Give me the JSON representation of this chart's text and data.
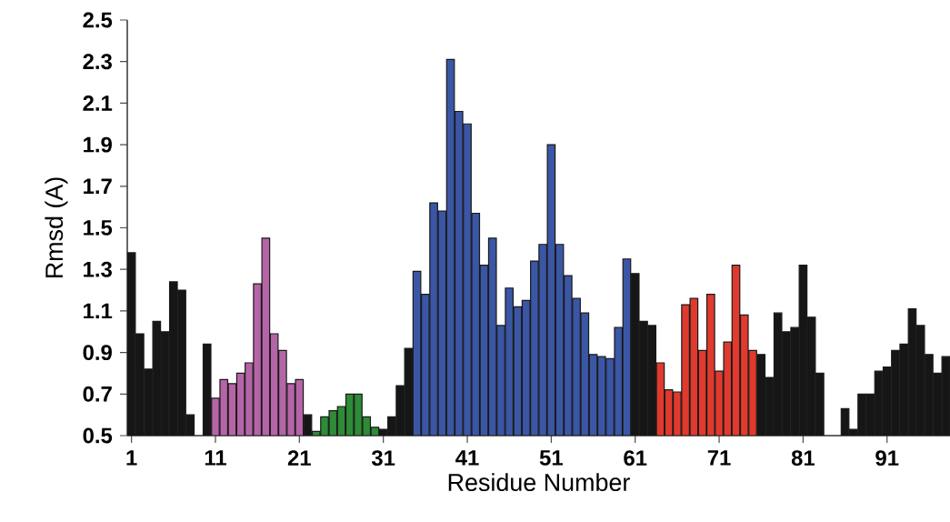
{
  "chart_data": {
    "type": "bar",
    "xlabel": "Residue Number",
    "ylabel": "Rmsd (A)",
    "x": [
      1,
      2,
      3,
      4,
      5,
      6,
      7,
      8,
      9,
      10,
      11,
      12,
      13,
      14,
      15,
      16,
      17,
      18,
      19,
      20,
      21,
      22,
      23,
      24,
      25,
      26,
      27,
      28,
      29,
      30,
      31,
      32,
      33,
      34,
      35,
      36,
      37,
      38,
      39,
      40,
      41,
      42,
      43,
      44,
      45,
      46,
      47,
      48,
      49,
      50,
      51,
      52,
      53,
      54,
      55,
      56,
      57,
      58,
      59,
      60,
      61,
      62,
      63,
      64,
      65,
      66,
      67,
      68,
      69,
      70,
      71,
      72,
      73,
      74,
      75,
      76,
      77,
      78,
      79,
      80,
      81,
      82,
      83,
      84,
      85,
      86,
      87,
      88,
      89,
      90,
      91,
      92,
      93,
      94,
      95,
      96,
      97,
      98
    ],
    "values": [
      1.38,
      0.99,
      0.82,
      1.05,
      1.0,
      1.24,
      1.2,
      0.6,
      null,
      0.94,
      0.68,
      0.77,
      0.75,
      0.8,
      0.85,
      1.23,
      1.45,
      0.99,
      0.91,
      0.75,
      0.77,
      0.6,
      0.52,
      0.59,
      0.62,
      0.64,
      0.7,
      0.7,
      0.59,
      0.54,
      0.53,
      0.59,
      0.74,
      0.92,
      1.29,
      1.18,
      1.62,
      1.58,
      2.31,
      2.06,
      2.0,
      1.57,
      1.32,
      1.45,
      1.03,
      1.21,
      1.12,
      1.15,
      1.34,
      1.42,
      1.9,
      1.42,
      1.27,
      1.16,
      1.09,
      0.89,
      0.88,
      0.87,
      1.02,
      1.35,
      1.28,
      1.05,
      1.03,
      0.85,
      0.72,
      0.71,
      1.13,
      1.16,
      0.91,
      1.18,
      0.81,
      0.95,
      1.32,
      1.08,
      0.91,
      0.89,
      0.78,
      1.09,
      1.0,
      1.02,
      1.32,
      1.07,
      0.8,
      null,
      null,
      0.63,
      0.53,
      0.7,
      0.7,
      0.81,
      0.83,
      0.91,
      0.94,
      1.11,
      1.03,
      0.89,
      0.8,
      0.88
    ],
    "colors": [
      "#161616",
      "#161616",
      "#161616",
      "#161616",
      "#161616",
      "#161616",
      "#161616",
      "#161616",
      "#161616",
      "#161616",
      "#b565a7",
      "#b565a7",
      "#b565a7",
      "#b565a7",
      "#b565a7",
      "#b565a7",
      "#b565a7",
      "#b565a7",
      "#b565a7",
      "#b565a7",
      "#b565a7",
      "#161616",
      "#2e8b37",
      "#2e8b37",
      "#2e8b37",
      "#2e8b37",
      "#2e8b37",
      "#2e8b37",
      "#2e8b37",
      "#2e8b37",
      "#161616",
      "#161616",
      "#161616",
      "#161616",
      "#3a56a5",
      "#3a56a5",
      "#3a56a5",
      "#3a56a5",
      "#3a56a5",
      "#3a56a5",
      "#3a56a5",
      "#3a56a5",
      "#3a56a5",
      "#3a56a5",
      "#3a56a5",
      "#3a56a5",
      "#3a56a5",
      "#3a56a5",
      "#3a56a5",
      "#3a56a5",
      "#3a56a5",
      "#3a56a5",
      "#3a56a5",
      "#3a56a5",
      "#3a56a5",
      "#3a56a5",
      "#3a56a5",
      "#3a56a5",
      "#3a56a5",
      "#3a56a5",
      "#161616",
      "#161616",
      "#161616",
      "#e03a2e",
      "#e03a2e",
      "#e03a2e",
      "#e03a2e",
      "#e03a2e",
      "#e03a2e",
      "#e03a2e",
      "#e03a2e",
      "#e03a2e",
      "#e03a2e",
      "#e03a2e",
      "#e03a2e",
      "#161616",
      "#161616",
      "#161616",
      "#161616",
      "#161616",
      "#161616",
      "#161616",
      "#161616",
      "#161616",
      "#161616",
      "#161616",
      "#161616",
      "#161616",
      "#161616",
      "#161616",
      "#161616",
      "#161616",
      "#161616",
      "#161616",
      "#161616",
      "#161616",
      "#161616",
      "#161616"
    ],
    "xlim": [
      0.5,
      98.5
    ],
    "ylim": [
      0.5,
      2.5
    ],
    "xticks": [
      1,
      11,
      21,
      31,
      41,
      51,
      61,
      71,
      81,
      91
    ],
    "yticks": [
      0.5,
      0.7,
      0.9,
      1.1,
      1.3,
      1.5,
      1.7,
      1.9,
      2.1,
      2.3,
      2.5
    ],
    "grid": false,
    "legend": false
  }
}
